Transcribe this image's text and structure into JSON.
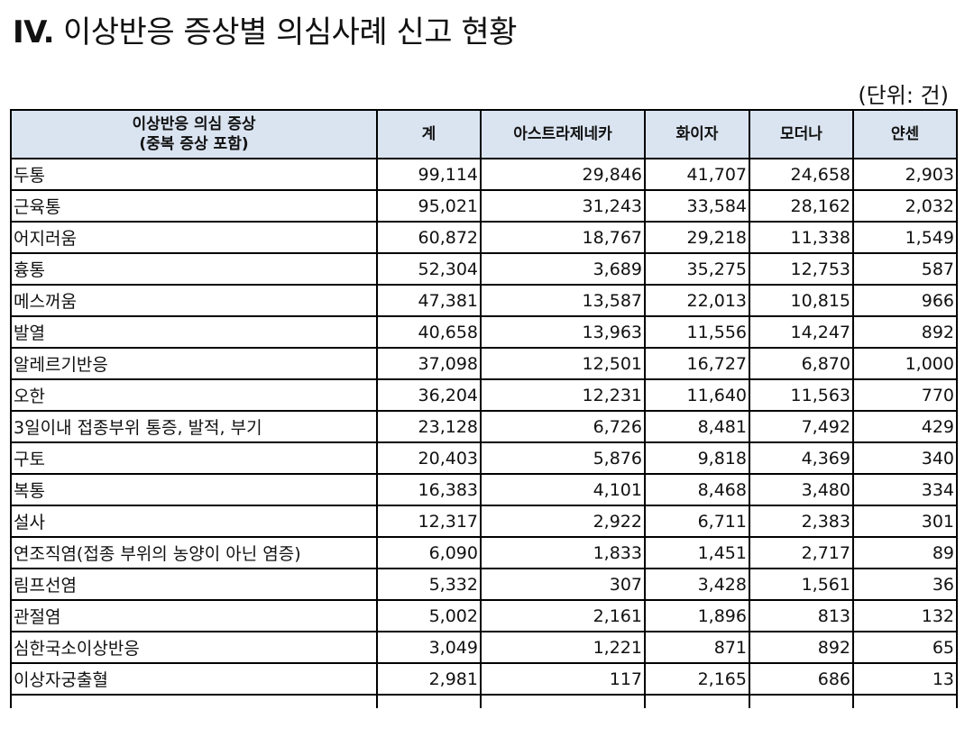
{
  "page": {
    "title_number": "IV.",
    "title_text": "이상반응 증상별 의심사례 신고 현황",
    "unit": "(단위: 건)"
  },
  "table": {
    "headers": {
      "symptom_line1": "이상반응 의심 증상",
      "symptom_line2": "(중복 증상 포함)",
      "total": "계",
      "astrazeneca": "아스트라제네카",
      "pfizer": "화이자",
      "moderna": "모더나",
      "janssen": "얀센"
    },
    "rows": [
      {
        "symptom": "두통",
        "total": "99,114",
        "astrazeneca": "29,846",
        "pfizer": "41,707",
        "moderna": "24,658",
        "janssen": "2,903"
      },
      {
        "symptom": "근육통",
        "total": "95,021",
        "astrazeneca": "31,243",
        "pfizer": "33,584",
        "moderna": "28,162",
        "janssen": "2,032"
      },
      {
        "symptom": "어지러움",
        "total": "60,872",
        "astrazeneca": "18,767",
        "pfizer": "29,218",
        "moderna": "11,338",
        "janssen": "1,549"
      },
      {
        "symptom": "흉통",
        "total": "52,304",
        "astrazeneca": "3,689",
        "pfizer": "35,275",
        "moderna": "12,753",
        "janssen": "587"
      },
      {
        "symptom": "메스꺼움",
        "total": "47,381",
        "astrazeneca": "13,587",
        "pfizer": "22,013",
        "moderna": "10,815",
        "janssen": "966"
      },
      {
        "symptom": "발열",
        "total": "40,658",
        "astrazeneca": "13,963",
        "pfizer": "11,556",
        "moderna": "14,247",
        "janssen": "892"
      },
      {
        "symptom": "알레르기반응",
        "total": "37,098",
        "astrazeneca": "12,501",
        "pfizer": "16,727",
        "moderna": "6,870",
        "janssen": "1,000"
      },
      {
        "symptom": "오한",
        "total": "36,204",
        "astrazeneca": "12,231",
        "pfizer": "11,640",
        "moderna": "11,563",
        "janssen": "770"
      },
      {
        "symptom": "3일이내 접종부위 통증, 발적, 부기",
        "total": "23,128",
        "astrazeneca": "6,726",
        "pfizer": "8,481",
        "moderna": "7,492",
        "janssen": "429"
      },
      {
        "symptom": "구토",
        "total": "20,403",
        "astrazeneca": "5,876",
        "pfizer": "9,818",
        "moderna": "4,369",
        "janssen": "340"
      },
      {
        "symptom": "복통",
        "total": "16,383",
        "astrazeneca": "4,101",
        "pfizer": "8,468",
        "moderna": "3,480",
        "janssen": "334"
      },
      {
        "symptom": "설사",
        "total": "12,317",
        "astrazeneca": "2,922",
        "pfizer": "6,711",
        "moderna": "2,383",
        "janssen": "301"
      },
      {
        "symptom": "연조직염(접종 부위의 농양이 아닌 염증)",
        "total": "6,090",
        "astrazeneca": "1,833",
        "pfizer": "1,451",
        "moderna": "2,717",
        "janssen": "89"
      },
      {
        "symptom": "림프선염",
        "total": "5,332",
        "astrazeneca": "307",
        "pfizer": "3,428",
        "moderna": "1,561",
        "janssen": "36"
      },
      {
        "symptom": "관절염",
        "total": "5,002",
        "astrazeneca": "2,161",
        "pfizer": "1,896",
        "moderna": "813",
        "janssen": "132"
      },
      {
        "symptom": "심한국소이상반응",
        "total": "3,049",
        "astrazeneca": "1,221",
        "pfizer": "871",
        "moderna": "892",
        "janssen": "65"
      },
      {
        "symptom": "이상자궁출혈",
        "total": "2,981",
        "astrazeneca": "117",
        "pfizer": "2,165",
        "moderna": "686",
        "janssen": "13"
      }
    ]
  }
}
